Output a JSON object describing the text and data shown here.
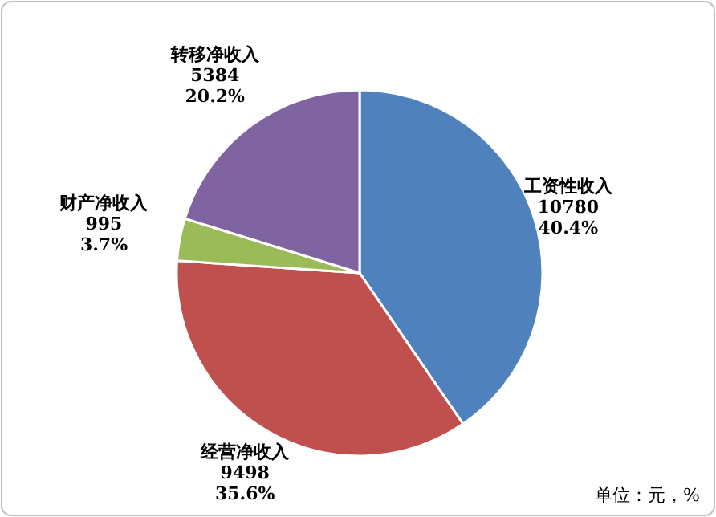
{
  "chart_data": {
    "type": "pie",
    "categories": [
      "工资性收入",
      "经营净收入",
      "财产净收入",
      "转移净收入"
    ],
    "values": [
      10780,
      9498,
      995,
      5384
    ],
    "colors": [
      "#4f81bd",
      "#c0504d",
      "#9bbb59",
      "#8064a2"
    ],
    "value_labels": [
      "10780\n40.4%",
      "9498\n35.6%",
      "995\n3.7%",
      "5384\n20.2%"
    ],
    "annotations": [
      "单位：元，%"
    ]
  }
}
